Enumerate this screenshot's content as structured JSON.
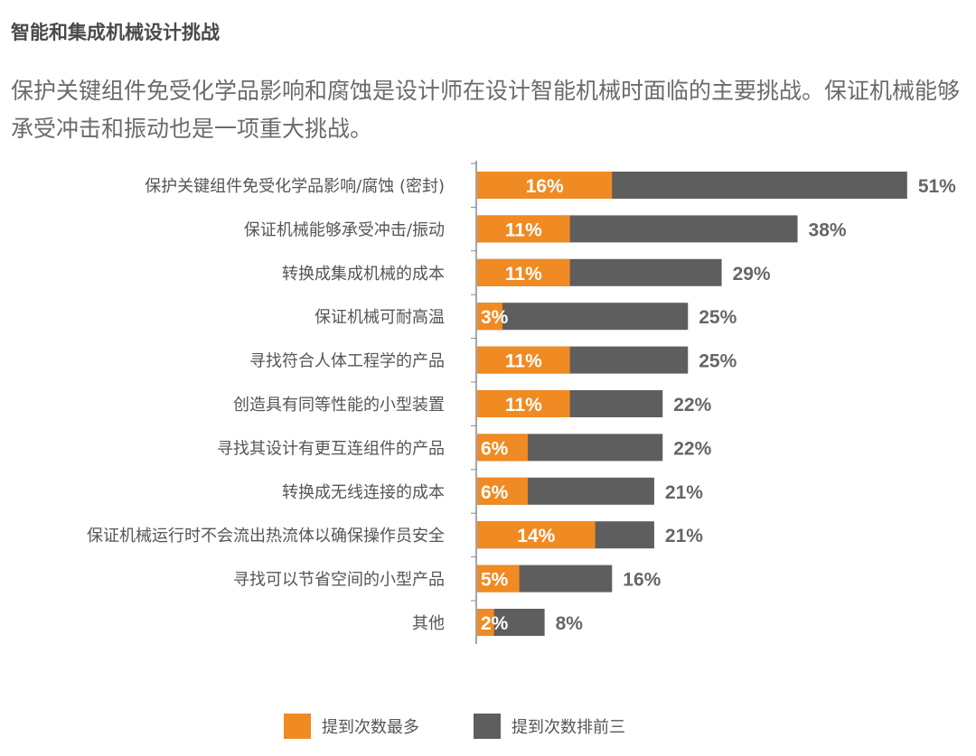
{
  "title": "智能和集成机械设计挑战",
  "subtitle": "保护关键组件免受化学品影响和腐蚀是设计师在设计智能机械时面临的主要挑战。保证机械能够承受冲击和振动也是一项重大挑战。",
  "colors": {
    "primary": "#f08a22",
    "top3": "#5e5e5e",
    "axis": "#888888",
    "label": "#555555",
    "value": "#666666"
  },
  "chart_data": {
    "type": "bar",
    "orientation": "horizontal",
    "stacked": "overlay",
    "title": "智能和集成机械设计挑战",
    "xlim": [
      0,
      55
    ],
    "categories": [
      "保护关键组件免受化学品影响/腐蚀 (密封)",
      "保证机械能够承受冲击/振动",
      "转换成集成机械的成本",
      "保证机械可耐高温",
      "寻找符合人体工程学的产品",
      "创造具有同等性能的小型装置",
      "寻找其设计有更互连组件的产品",
      "转换成无线连接的成本",
      "保证机械运行时不会流出热流体以确保操作员安全",
      "寻找可以节省空间的小型产品",
      "其他"
    ],
    "series": [
      {
        "name": "提到次数最多",
        "color": "#f08a22",
        "values": [
          16,
          11,
          11,
          3,
          11,
          11,
          6,
          6,
          14,
          5,
          2
        ],
        "labels": [
          "16%",
          "11%",
          "11%",
          "3%",
          "11%",
          "11%",
          "6%",
          "6%",
          "14%",
          "5%",
          "2%"
        ]
      },
      {
        "name": "提到次数排前三",
        "color": "#5e5e5e",
        "values": [
          51,
          38,
          29,
          25,
          25,
          22,
          22,
          21,
          21,
          16,
          8
        ],
        "labels": [
          "51%",
          "38%",
          "29%",
          "25%",
          "25%",
          "22%",
          "22%",
          "21%",
          "21%",
          "16%",
          "8%"
        ]
      }
    ],
    "legend": {
      "position": "bottom"
    }
  }
}
